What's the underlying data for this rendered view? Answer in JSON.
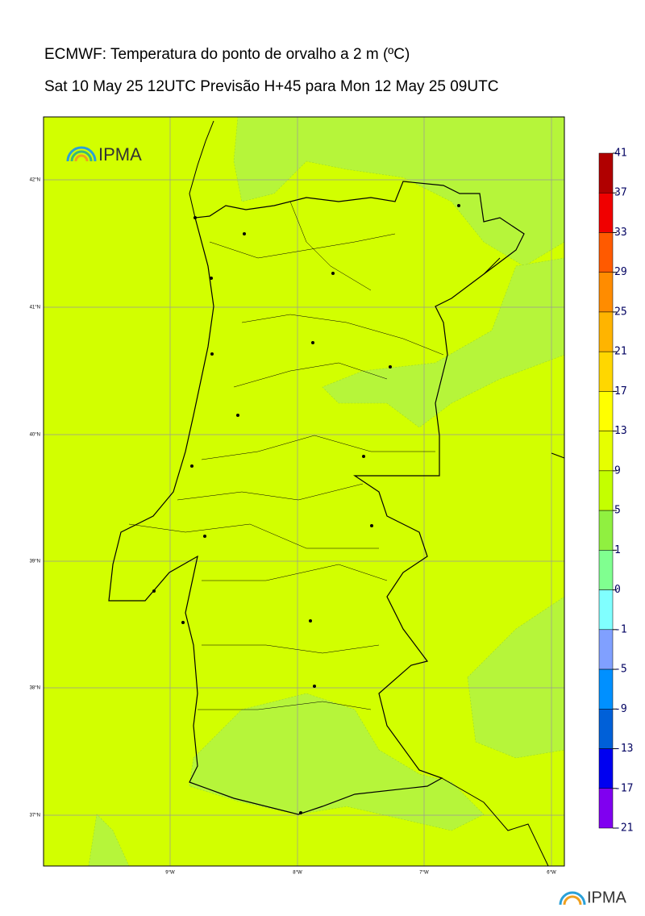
{
  "title": "ECMWF: Temperatura do ponto de orvalho a 2 m (ºC)",
  "subtitle": "Sat 10 May 25 12UTC Previsão H+45 para Mon 12 May 25 09UTC",
  "logo": "IPMA",
  "lat_labels": [
    "42°N",
    "41°N",
    "40°N",
    "39°N",
    "38°N",
    "37°N"
  ],
  "lon_labels": [
    "9°W",
    "8°W",
    "7°W",
    "6°W"
  ],
  "colorbar": {
    "levels": [
      41,
      37,
      33,
      29,
      25,
      21,
      17,
      13,
      9,
      5,
      1,
      0,
      -1,
      -5,
      -9,
      -13,
      -17,
      -21
    ],
    "colors": [
      "#b00000",
      "#f00000",
      "#ff5a00",
      "#ff8c00",
      "#ffb400",
      "#ffd700",
      "#ffff00",
      "#e6ff00",
      "#c4ff00",
      "#90f040",
      "#80ff90",
      "#80ffff",
      "#80a0ff",
      "#0090ff",
      "#0060d8",
      "#0000f0",
      "#8000f0"
    ]
  }
}
